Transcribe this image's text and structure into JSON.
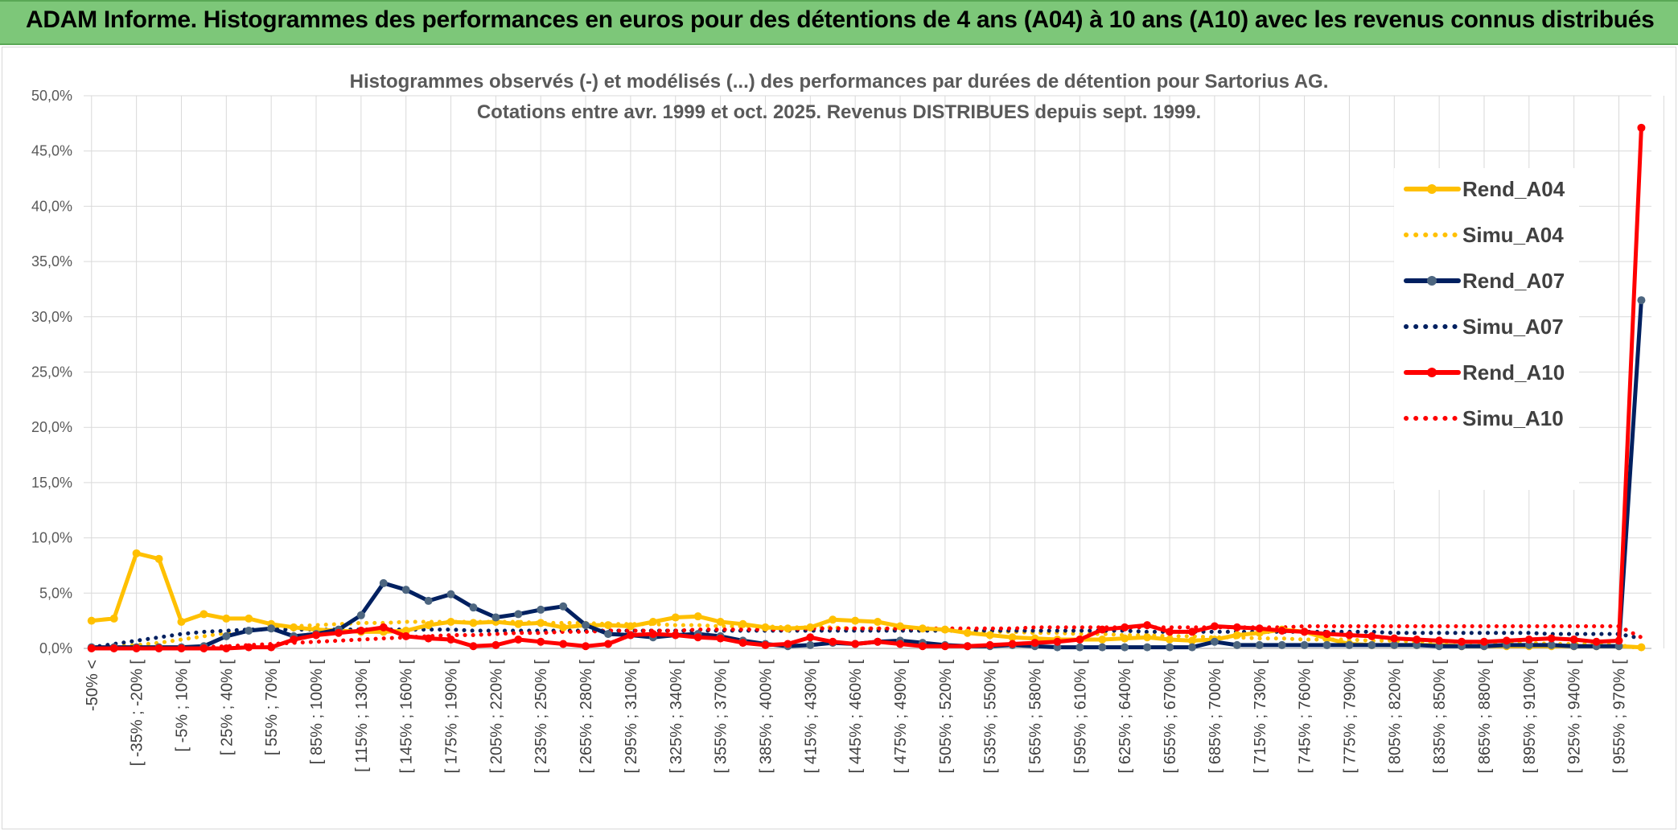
{
  "banner": {
    "title": "ADAM Informe. Histogrammes des performances en euros pour des détentions de 4 ans (A04) à 10 ans (A10) avec les revenus connus distribués"
  },
  "colors": {
    "banner_bg": "#7dc779",
    "A04": "#ffc000",
    "A07": "#002060",
    "A07_marker": "#4d6680",
    "A10": "#ff0000",
    "grid": "#d9d9d9"
  },
  "chart_data": {
    "type": "line",
    "title_lines": [
      "Histogrammes observés (-) et modélisés (...) des performances par durées de détention pour Sartorius AG.",
      "Cotations entre avr. 1999 et oct. 2025. Revenus DISTRIBUES depuis sept. 1999."
    ],
    "ylim": [
      0,
      50
    ],
    "y_ticks": [
      "0,0%",
      "5,0%",
      "10,0%",
      "15,0%",
      "20,0%",
      "25,0%",
      "30,0%",
      "35,0%",
      "40,0%",
      "45,0%",
      "50,0%"
    ],
    "x_tick_labels": [
      "-50% <",
      "[ -35% ; -20% [",
      "[ -5% ; 10% [",
      "[ 25% ; 40% [",
      "[ 55% ; 70% [",
      "[ 85% ; 100% [",
      "[ 115% ; 130% [",
      "[ 145% ; 160% [",
      "[ 175% ; 190% [",
      "[ 205% ; 220% [",
      "[ 235% ; 250% [",
      "[ 265% ; 280% [",
      "[ 295% ; 310% [",
      "[ 325% ; 340% [",
      "[ 355% ; 370% [",
      "[ 385% ; 400% [",
      "[ 415% ; 430% [",
      "[ 445% ; 460% [",
      "[ 475% ; 490% [",
      "[ 505% ; 520% [",
      "[ 535% ; 550% [",
      "[ 565% ; 580% [",
      "[ 595% ; 610% [",
      "[ 625% ; 640% [",
      "[ 655% ; 670% [",
      "[ 685% ; 700% [",
      "[ 715% ; 730% [",
      "[ 745% ; 760% [",
      "[ 775% ; 790% [",
      "[ 805% ; 820% [",
      "[ 835% ; 850% [",
      "[ 865% ; 880% [",
      "[ 895% ; 910% [",
      "[ 925% ; 940% [",
      "[ 955% ; 970% ["
    ],
    "n_categories": 70,
    "legend_position": "right",
    "grid": true,
    "series": [
      {
        "name": "Rend_A04",
        "style": "solid",
        "color": "#ffc000",
        "values": [
          2.5,
          2.7,
          8.6,
          8.1,
          2.4,
          3.1,
          2.7,
          2.7,
          2.2,
          1.9,
          1.7,
          1.6,
          1.5,
          1.5,
          1.6,
          2.1,
          2.4,
          2.3,
          2.4,
          2.2,
          2.3,
          1.9,
          2.1,
          2.1,
          2.0,
          2.4,
          2.8,
          2.9,
          2.4,
          2.2,
          1.9,
          1.8,
          1.9,
          2.6,
          2.5,
          2.4,
          2.0,
          1.8,
          1.7,
          1.4,
          1.2,
          1.0,
          0.9,
          0.8,
          0.8,
          0.8,
          0.9,
          1.0,
          0.8,
          0.7,
          0.8,
          1.2,
          1.4,
          1.7,
          1.5,
          0.9,
          0.4,
          0.3,
          0.3,
          0.3,
          0.3,
          0.2,
          0.2,
          0.2,
          0.2,
          0.2,
          0.2,
          0.2,
          0.2,
          0.1
        ]
      },
      {
        "name": "Simu_A04",
        "style": "dotted",
        "color": "#ffc000",
        "values": [
          0.1,
          0.2,
          0.3,
          0.5,
          0.8,
          1.1,
          1.4,
          1.6,
          1.8,
          2.0,
          2.1,
          2.2,
          2.3,
          2.3,
          2.4,
          2.4,
          2.4,
          2.4,
          2.4,
          2.4,
          2.3,
          2.3,
          2.3,
          2.2,
          2.2,
          2.2,
          2.1,
          2.1,
          2.0,
          2.0,
          2.0,
          1.9,
          1.9,
          1.9,
          1.8,
          1.8,
          1.7,
          1.7,
          1.6,
          1.6,
          1.5,
          1.5,
          1.4,
          1.4,
          1.3,
          1.3,
          1.2,
          1.2,
          1.1,
          1.1,
          1.0,
          1.0,
          0.9,
          0.9,
          0.8,
          0.8,
          0.8,
          0.7,
          0.7,
          0.6,
          0.6,
          0.6,
          0.5,
          0.5,
          0.5,
          0.4,
          0.4,
          0.4,
          0.3,
          0.0
        ]
      },
      {
        "name": "Rend_A07",
        "style": "solid",
        "color": "#002060",
        "values": [
          0.1,
          0.1,
          0.1,
          0.1,
          0.1,
          0.2,
          1.1,
          1.6,
          1.8,
          1.1,
          1.3,
          1.7,
          3.0,
          5.9,
          5.3,
          4.3,
          4.9,
          3.7,
          2.8,
          3.1,
          3.5,
          3.8,
          2.1,
          1.3,
          1.2,
          1.0,
          1.2,
          1.3,
          1.1,
          0.7,
          0.4,
          0.2,
          0.3,
          0.5,
          0.4,
          0.6,
          0.7,
          0.5,
          0.3,
          0.2,
          0.2,
          0.3,
          0.2,
          0.1,
          0.1,
          0.1,
          0.1,
          0.1,
          0.1,
          0.1,
          0.6,
          0.3,
          0.3,
          0.3,
          0.3,
          0.3,
          0.3,
          0.3,
          0.3,
          0.3,
          0.2,
          0.2,
          0.2,
          0.3,
          0.3,
          0.3,
          0.2,
          0.2,
          0.2,
          31.5
        ]
      },
      {
        "name": "Simu_A07",
        "style": "dotted",
        "color": "#002060",
        "values": [
          0.1,
          0.4,
          0.7,
          1.0,
          1.3,
          1.5,
          1.6,
          1.7,
          1.7,
          1.7,
          1.7,
          1.7,
          1.7,
          1.7,
          1.7,
          1.7,
          1.7,
          1.6,
          1.6,
          1.6,
          1.6,
          1.6,
          1.6,
          1.6,
          1.6,
          1.6,
          1.6,
          1.6,
          1.6,
          1.6,
          1.6,
          1.6,
          1.6,
          1.6,
          1.6,
          1.6,
          1.6,
          1.6,
          1.6,
          1.6,
          1.6,
          1.6,
          1.6,
          1.6,
          1.6,
          1.6,
          1.6,
          1.5,
          1.5,
          1.5,
          1.5,
          1.5,
          1.5,
          1.5,
          1.5,
          1.5,
          1.5,
          1.5,
          1.4,
          1.4,
          1.4,
          1.4,
          1.4,
          1.4,
          1.4,
          1.3,
          1.3,
          1.3,
          1.3,
          0.9
        ]
      },
      {
        "name": "Rend_A10",
        "style": "solid",
        "color": "#ff0000",
        "values": [
          0.0,
          0.0,
          0.0,
          0.0,
          0.0,
          0.0,
          0.0,
          0.1,
          0.1,
          0.8,
          1.2,
          1.4,
          1.6,
          1.9,
          1.1,
          0.9,
          0.8,
          0.2,
          0.3,
          0.8,
          0.6,
          0.4,
          0.2,
          0.4,
          1.2,
          1.3,
          1.2,
          1.0,
          0.9,
          0.5,
          0.3,
          0.4,
          1.0,
          0.6,
          0.4,
          0.6,
          0.4,
          0.2,
          0.2,
          0.2,
          0.3,
          0.4,
          0.5,
          0.6,
          0.8,
          1.7,
          1.9,
          2.1,
          1.5,
          1.5,
          2.0,
          1.9,
          1.8,
          1.6,
          1.5,
          1.3,
          1.2,
          1.1,
          0.9,
          0.8,
          0.7,
          0.6,
          0.6,
          0.7,
          0.8,
          0.9,
          0.8,
          0.6,
          0.7,
          47.1
        ]
      },
      {
        "name": "Simu_A10",
        "style": "dotted",
        "color": "#ff0000",
        "values": [
          0.0,
          0.0,
          0.0,
          0.0,
          0.0,
          0.1,
          0.2,
          0.3,
          0.4,
          0.5,
          0.6,
          0.7,
          0.8,
          0.9,
          1.0,
          1.1,
          1.2,
          1.2,
          1.3,
          1.4,
          1.4,
          1.5,
          1.5,
          1.6,
          1.6,
          1.6,
          1.6,
          1.7,
          1.7,
          1.7,
          1.7,
          1.7,
          1.8,
          1.8,
          1.8,
          1.8,
          1.8,
          1.8,
          1.8,
          1.8,
          1.8,
          1.8,
          1.9,
          1.9,
          1.9,
          1.9,
          1.9,
          1.9,
          1.9,
          1.9,
          1.9,
          1.9,
          1.9,
          1.9,
          2.0,
          2.0,
          2.0,
          2.0,
          2.0,
          2.0,
          2.0,
          2.0,
          2.0,
          2.0,
          2.0,
          2.0,
          2.0,
          2.0,
          2.0,
          1.0
        ]
      }
    ]
  }
}
